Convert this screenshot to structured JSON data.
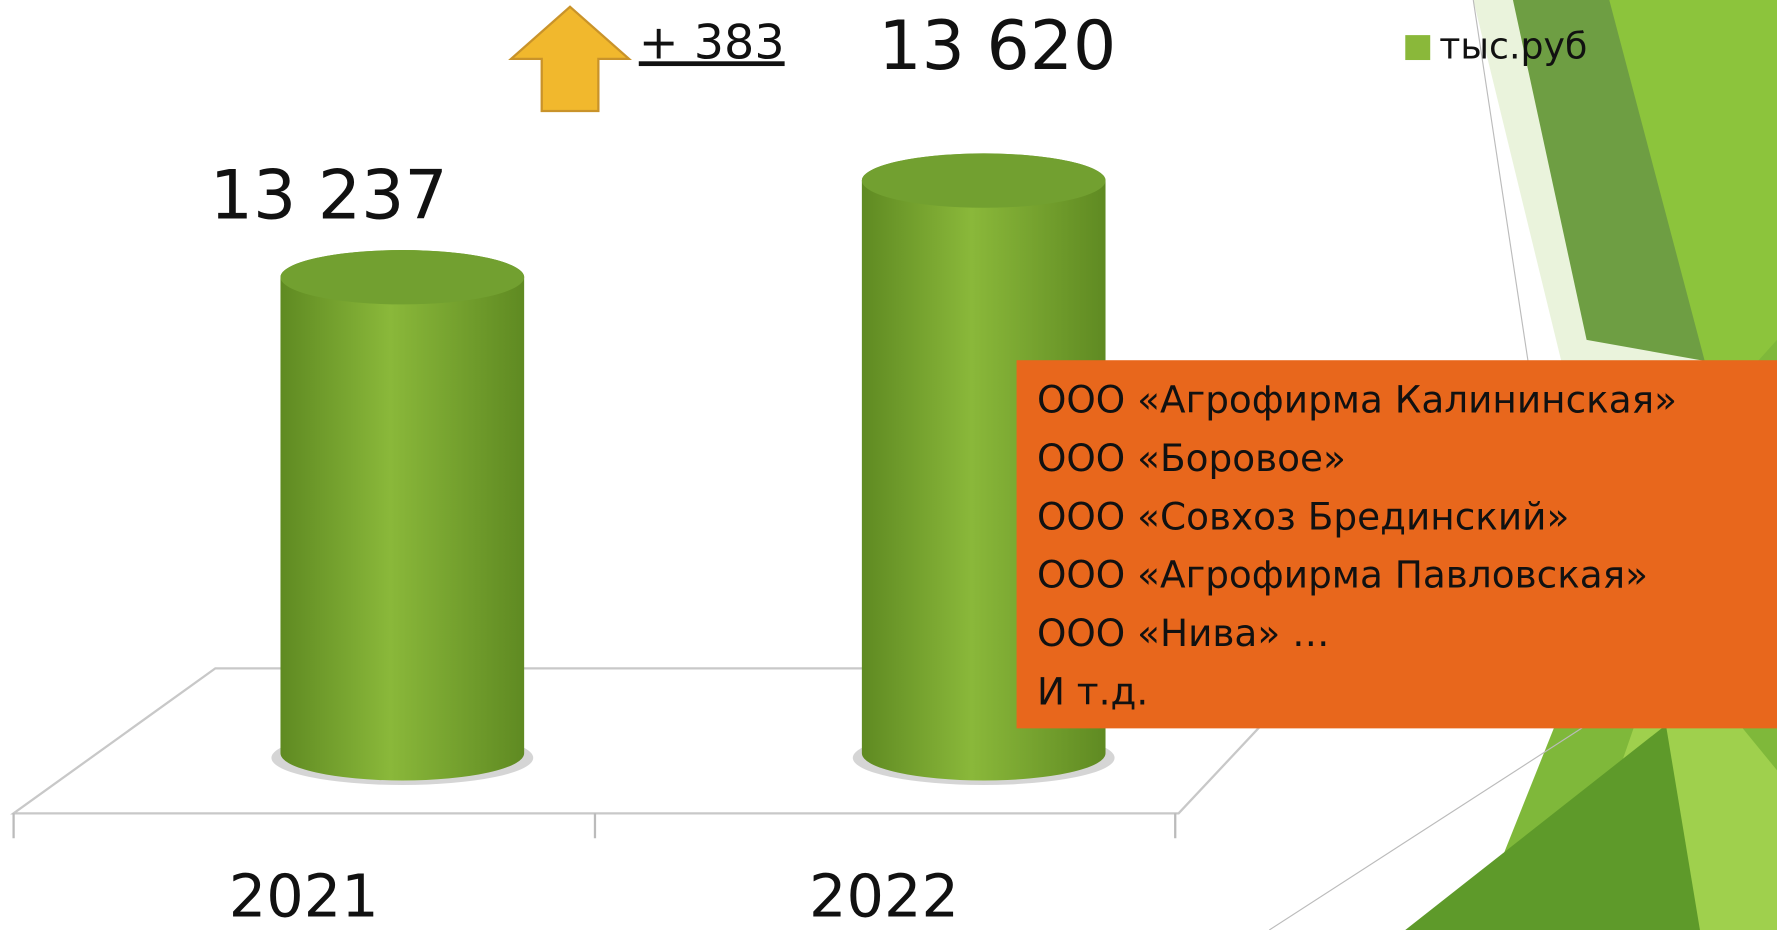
{
  "chart_data": {
    "type": "bar",
    "categories": [
      "2021",
      "2022"
    ],
    "series": [
      {
        "name": "тыс.руб",
        "color": "#8ab83a",
        "values": [
          13237,
          13620
        ],
        "value_labels": [
          "13 237",
          "13 620"
        ]
      }
    ],
    "ylim": [
      11350,
      14300
    ],
    "annotation": "+ 383"
  },
  "text_box": {
    "lines": [
      "ООО «Агрофирма Калининская»",
      "ООО «Боровое»",
      "ООО «Совхоз Брединский»",
      "ООО «Агрофирма Павловская»",
      "ООО «Нива» …",
      "И т.д."
    ]
  }
}
